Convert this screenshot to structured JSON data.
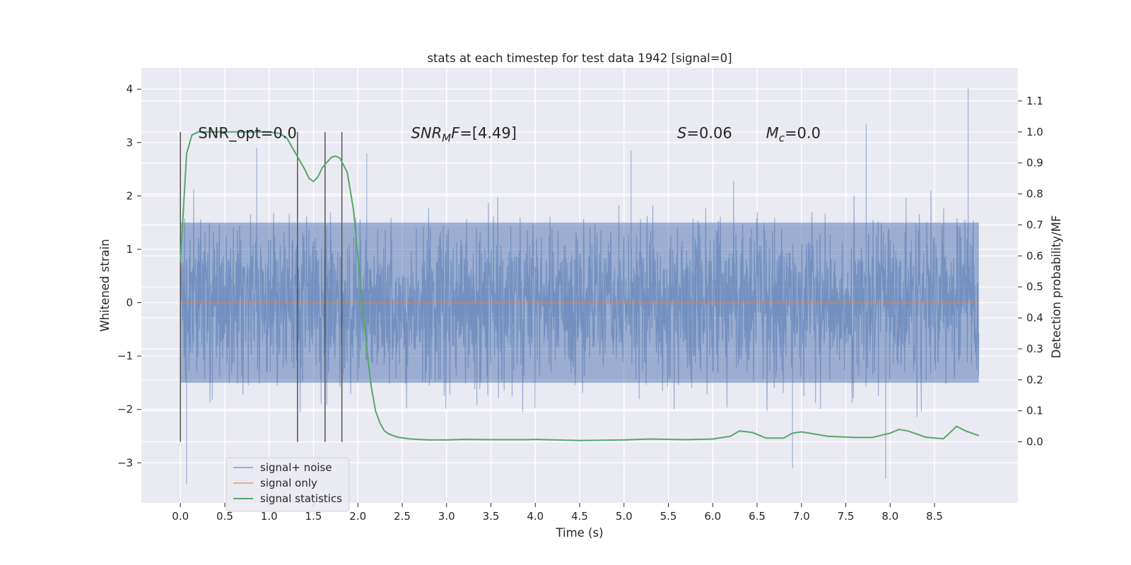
{
  "chart_data": {
    "type": "line",
    "title": "stats at each timestep for test data 1942 [signal=0]",
    "xlabel": "Time (s)",
    "ylabel": "Whitened strain",
    "ylabel_right": "Detection probability/MF",
    "xlim": [
      -0.44,
      9.44
    ],
    "ylim": [
      -3.75,
      4.4
    ],
    "ylim_right": [
      -0.197,
      1.207
    ],
    "xticks": [
      "0.0",
      "0.5",
      "1.0",
      "1.5",
      "2.0",
      "2.5",
      "3.0",
      "3.5",
      "4.0",
      "4.5",
      "5.0",
      "5.5",
      "6.0",
      "6.5",
      "7.0",
      "7.5",
      "8.0",
      "8.5"
    ],
    "yticks": [
      "4",
      "3",
      "2",
      "1",
      "0",
      "−1",
      "−2",
      "−3"
    ],
    "yticks_right": [
      "1.1",
      "1.0",
      "0.9",
      "0.8",
      "0.7",
      "0.6",
      "0.5",
      "0.4",
      "0.3",
      "0.2",
      "0.1",
      "0.0"
    ],
    "grid": true,
    "legend_position": "lower-left",
    "annotations": [
      {
        "text": "SNR_opt=0.0",
        "x": 0.2,
        "y": 3.2
      },
      {
        "text": "SNR_MF=[4.49]",
        "x": 2.6,
        "y": 3.2
      },
      {
        "text": "S=0.06",
        "x": 5.6,
        "y": 3.2
      },
      {
        "text": "M_c=0.0",
        "x": 6.6,
        "y": 3.2
      }
    ],
    "vertical_markers": [
      0.0,
      1.32,
      1.63,
      1.82
    ],
    "series": [
      {
        "name": "signal+ noise",
        "axis": "left",
        "color": "#4c72b0",
        "style": "dense noise trace",
        "x_range": [
          0.0,
          9.0
        ],
        "y_typical_range": [
          -1.5,
          1.5
        ],
        "spikes": [
          {
            "x": 0.07,
            "y": -3.4
          },
          {
            "x": 7.73,
            "y": 3.35
          },
          {
            "x": 8.88,
            "y": 4.02
          },
          {
            "x": 6.9,
            "y": -3.1
          },
          {
            "x": 7.95,
            "y": -3.3
          },
          {
            "x": 0.86,
            "y": 2.9
          },
          {
            "x": 2.1,
            "y": 2.8
          },
          {
            "x": 5.08,
            "y": 2.85
          }
        ]
      },
      {
        "name": "signal only",
        "axis": "left",
        "color": "#dd8452",
        "x": [
          0.0,
          9.0
        ],
        "y": [
          0.0,
          0.0
        ]
      },
      {
        "name": "signal statistics",
        "axis": "right",
        "color": "#55a868",
        "x": [
          0.0,
          0.07,
          0.13,
          0.2,
          0.3,
          0.5,
          0.8,
          1.0,
          1.12,
          1.2,
          1.3,
          1.4,
          1.45,
          1.5,
          1.55,
          1.6,
          1.7,
          1.75,
          1.8,
          1.88,
          1.95,
          2.0,
          2.05,
          2.1,
          2.15,
          2.2,
          2.25,
          2.3,
          2.35,
          2.45,
          2.6,
          2.8,
          3.0,
          3.2,
          3.5,
          3.9,
          4.0,
          4.5,
          5.0,
          5.3,
          5.7,
          6.0,
          6.2,
          6.3,
          6.45,
          6.6,
          6.8,
          6.9,
          7.0,
          7.3,
          7.6,
          7.8,
          8.0,
          8.1,
          8.2,
          8.4,
          8.6,
          8.75,
          8.85,
          9.0
        ],
        "y": [
          0.58,
          0.93,
          0.99,
          1.0,
          1.0,
          1.0,
          1.0,
          1.0,
          0.995,
          0.98,
          0.93,
          0.88,
          0.85,
          0.84,
          0.855,
          0.885,
          0.918,
          0.922,
          0.915,
          0.87,
          0.75,
          0.6,
          0.45,
          0.3,
          0.18,
          0.1,
          0.06,
          0.035,
          0.025,
          0.015,
          0.009,
          0.006,
          0.006,
          0.008,
          0.007,
          0.007,
          0.008,
          0.004,
          0.006,
          0.009,
          0.007,
          0.009,
          0.018,
          0.035,
          0.03,
          0.012,
          0.012,
          0.028,
          0.032,
          0.018,
          0.014,
          0.014,
          0.028,
          0.04,
          0.035,
          0.015,
          0.01,
          0.05,
          0.035,
          0.02
        ]
      }
    ]
  }
}
